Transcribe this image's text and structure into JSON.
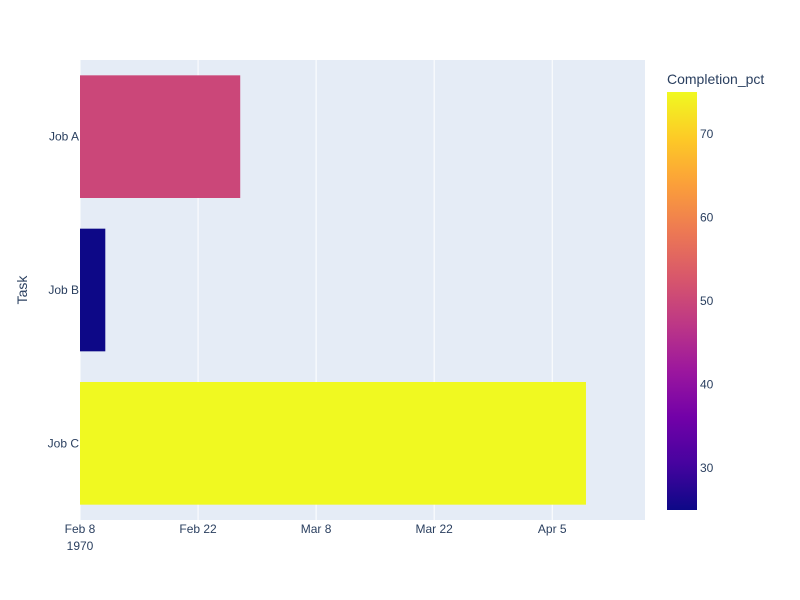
{
  "chart_data": {
    "type": "bar",
    "orientation": "horizontal",
    "title": "",
    "xlabel": "",
    "ylabel": "Task",
    "categories": [
      "Job A",
      "Job B",
      "Job C"
    ],
    "tasks": [
      {
        "name": "Job A",
        "start": "1970-02-08",
        "end": "1970-02-27",
        "completion_pct": 50
      },
      {
        "name": "Job B",
        "start": "1970-02-08",
        "end": "1970-02-11",
        "completion_pct": 25
      },
      {
        "name": "Job C",
        "start": "1970-02-08",
        "end": "1970-04-09",
        "completion_pct": 75
      }
    ],
    "x_axis": {
      "type": "date",
      "range": [
        "1970-02-08",
        "1970-04-16"
      ],
      "ticks": [
        {
          "value": "1970-02-08",
          "label": "Feb 8",
          "sublabel": "1970"
        },
        {
          "value": "1970-02-22",
          "label": "Feb 22"
        },
        {
          "value": "1970-03-08",
          "label": "Mar 8"
        },
        {
          "value": "1970-03-22",
          "label": "Mar 22"
        },
        {
          "value": "1970-04-05",
          "label": "Apr 5"
        }
      ]
    },
    "grid": true,
    "colorbar": {
      "title": "Completion_pct",
      "range": [
        25,
        75
      ],
      "colorscale": "Plasma",
      "ticks": [
        {
          "value": 30,
          "label": "30"
        },
        {
          "value": 40,
          "label": "40"
        },
        {
          "value": 50,
          "label": "50"
        },
        {
          "value": 60,
          "label": "60"
        },
        {
          "value": 70,
          "label": "70"
        }
      ]
    },
    "colors": {
      "plot_background": "#e5ecf6",
      "grid": "#ffffff",
      "text": "#2a3f5f"
    }
  }
}
